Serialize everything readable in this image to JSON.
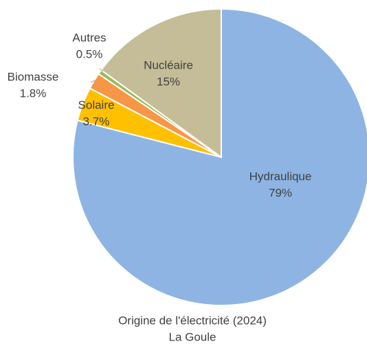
{
  "chart_data": {
    "type": "pie",
    "title": "Origine de l'électricité (2024)",
    "subtitle": "La Goule",
    "categories": [
      "Hydraulique",
      "Solaire",
      "Biomasse",
      "Autres",
      "Nucléaire"
    ],
    "values": [
      79,
      3.7,
      1.8,
      0.5,
      15
    ],
    "value_labels": [
      "79%",
      "3.7%",
      "1.8%",
      "0.5%",
      "15%"
    ],
    "colors": [
      "#8eb4e3",
      "#ffc000",
      "#f79646",
      "#9bbb59",
      "#c4bd97"
    ]
  }
}
